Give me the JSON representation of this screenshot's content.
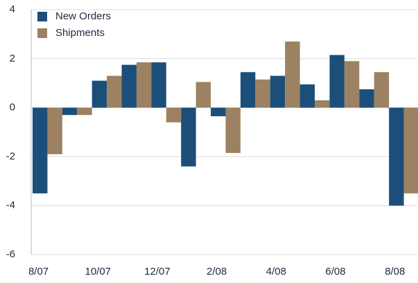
{
  "chart_data": {
    "type": "bar",
    "categories": [
      "8/07",
      null,
      "10/07",
      null,
      "12/07",
      null,
      "2/08",
      null,
      "4/08",
      null,
      "6/08",
      null,
      "8/08"
    ],
    "series": [
      {
        "name": "New Orders",
        "color": "#1b4f7a",
        "values": [
          -3.5,
          -0.3,
          1.1,
          1.75,
          1.85,
          -2.4,
          -0.35,
          1.45,
          1.3,
          0.95,
          2.15,
          0.75,
          -4.0
        ]
      },
      {
        "name": "Shipments",
        "color": "#9c8262",
        "values": [
          -1.9,
          -0.3,
          1.3,
          1.85,
          -0.6,
          1.05,
          -1.85,
          1.15,
          2.7,
          0.3,
          1.9,
          1.45,
          -3.5
        ]
      }
    ],
    "ylim": [
      -6,
      4
    ],
    "yticks": [
      -6,
      -4,
      -2,
      0,
      2,
      4
    ],
    "grid": true,
    "legend": "top-left"
  }
}
